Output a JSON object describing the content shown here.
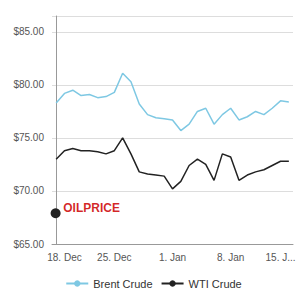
{
  "chart_data": {
    "type": "line",
    "x": [
      0,
      1,
      2,
      3,
      4,
      5,
      6,
      7,
      8,
      9,
      10,
      11,
      12,
      13,
      14,
      15,
      16,
      17,
      18,
      19,
      20,
      21,
      22,
      23,
      24,
      25,
      26,
      27,
      28
    ],
    "series": [
      {
        "name": "Brent Crude",
        "color": "#7ec8e3",
        "values": [
          78.3,
          79.2,
          79.5,
          79.0,
          79.1,
          78.8,
          78.9,
          79.3,
          81.1,
          80.3,
          78.2,
          77.2,
          76.9,
          76.8,
          76.7,
          75.7,
          76.3,
          77.5,
          77.8,
          76.3,
          77.2,
          77.8,
          76.7,
          77.0,
          77.5,
          77.2,
          77.8,
          78.5,
          78.4
        ]
      },
      {
        "name": "WTI Crude",
        "color": "#222222",
        "values": [
          73.0,
          73.8,
          74.0,
          73.8,
          73.8,
          73.7,
          73.5,
          73.8,
          75.0,
          73.5,
          71.8,
          71.6,
          71.5,
          71.4,
          70.2,
          70.9,
          72.4,
          73.0,
          72.5,
          71.0,
          73.5,
          73.2,
          71.0,
          71.5,
          71.8,
          72.0,
          72.4,
          72.8,
          72.8
        ]
      }
    ],
    "xlim": [
      -0.5,
      28.5
    ],
    "xticks": [
      {
        "value": 1,
        "label": "18. Dec"
      },
      {
        "value": 7,
        "label": "25. Dec"
      },
      {
        "value": 14,
        "label": "1. Jan"
      },
      {
        "value": 21,
        "label": "8. Jan"
      },
      {
        "value": 27,
        "label": "15. J..."
      }
    ],
    "ylim": [
      65.0,
      86.5
    ],
    "yticks": [
      {
        "value": 65.0,
        "label": "$65.00"
      },
      {
        "value": 70.0,
        "label": "$70.00"
      },
      {
        "value": 75.0,
        "label": "$75.00"
      },
      {
        "value": 80.0,
        "label": "$80.00"
      },
      {
        "value": 85.0,
        "label": "$85.00"
      }
    ],
    "grid": "y",
    "legend": "bottom",
    "annotations": [
      {
        "text": "OILPRICE",
        "color": "#cc0000"
      }
    ]
  }
}
